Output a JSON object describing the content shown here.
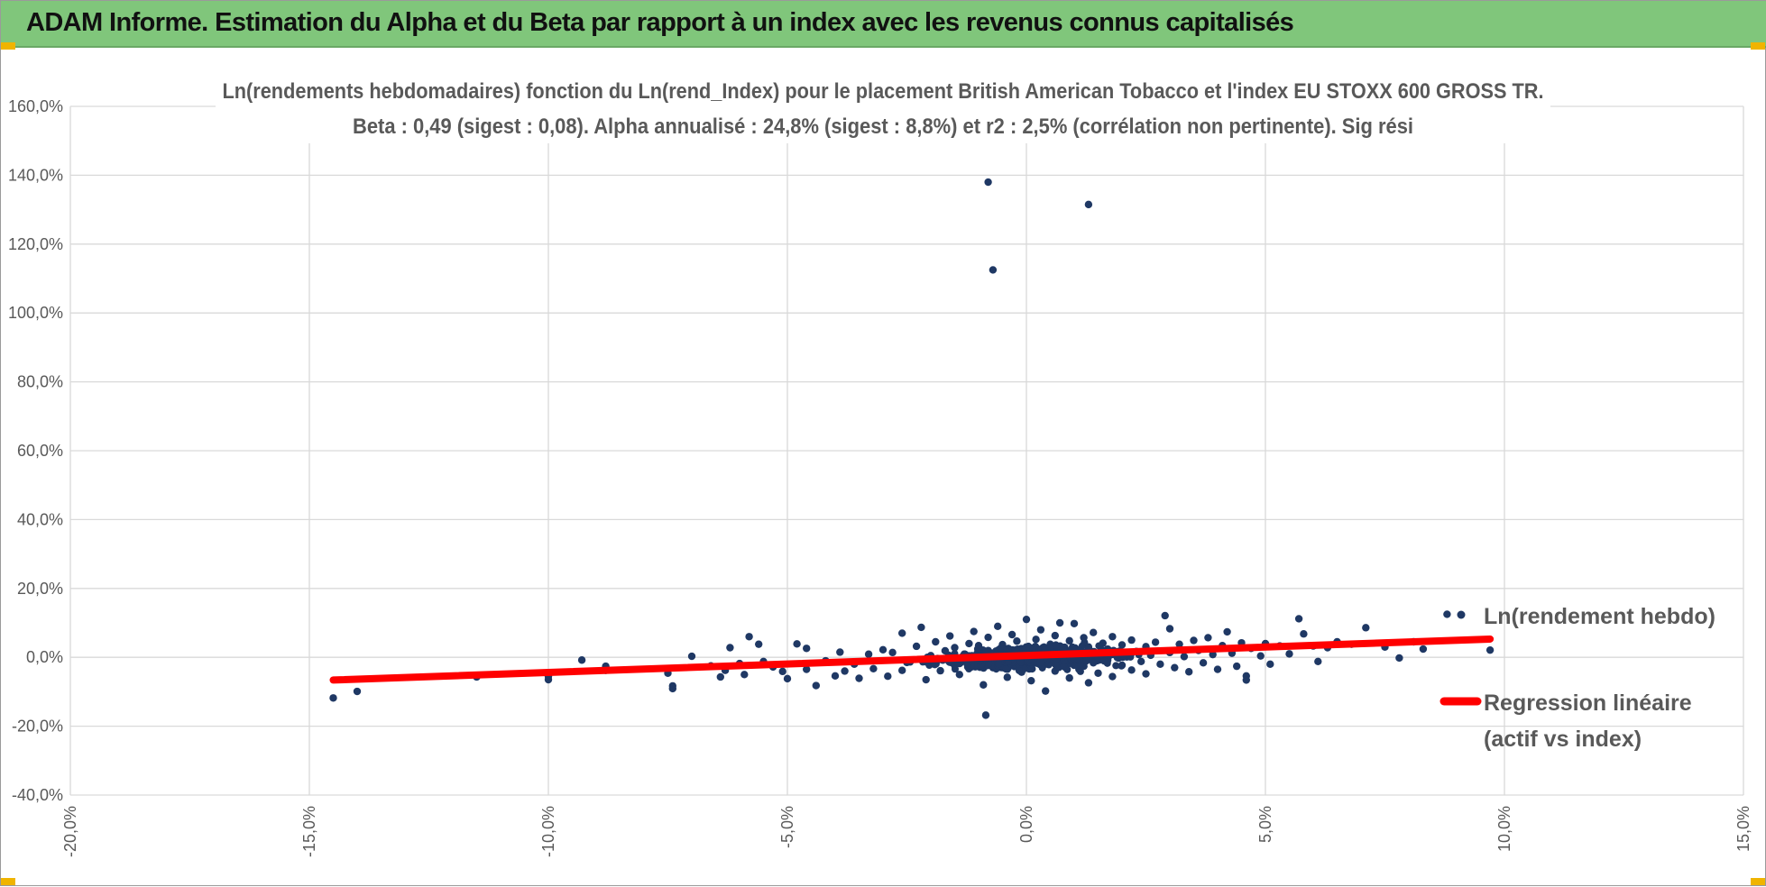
{
  "header": {
    "title": "ADAM Informe. Estimation du Alpha et du Beta par rapport à un index avec les revenus connus capitalisés"
  },
  "colors": {
    "header_bg": "#80c67b",
    "corner_accent": "#f0b400",
    "point": "#1f3864",
    "regression": "#ff0000",
    "grid": "#d9d9d9",
    "text": "#595959"
  },
  "chart_data": {
    "type": "scatter",
    "title_lines": [
      "Ln(rendements hebdomadaires) fonction du Ln(rend_Index) pour le placement British American Tobacco  et l'index EU STOXX 600 GROSS TR.",
      "Beta : 0,49 (sigest : 0,08).  Alpha annualisé : 24,8% (sigest : 8,8%) et r2 : 2,5% (corrélation non pertinente). Sig rési"
    ],
    "xlim": [
      -20,
      15
    ],
    "ylim": [
      -40,
      160
    ],
    "x_ticks": [
      -20,
      -15,
      -10,
      -5,
      0,
      5,
      10,
      15
    ],
    "y_ticks": [
      -40,
      -20,
      0,
      20,
      40,
      60,
      80,
      100,
      120,
      140,
      160
    ],
    "x_tick_labels": [
      "-20,0%",
      "-15,0%",
      "-10,0%",
      "-5,0%",
      "0,0%",
      "5,0%",
      "10,0%",
      "15,0%"
    ],
    "y_tick_labels": [
      "-40,0%",
      "-20,0%",
      "0,0%",
      "20,0%",
      "40,0%",
      "60,0%",
      "80,0%",
      "100,0%",
      "120,0%",
      "140,0%",
      "160,0%"
    ],
    "grid": true,
    "legend_position": "right",
    "series": [
      {
        "name": "Ln(rendement hebdo)",
        "kind": "points",
        "points": [
          [
            -14.5,
            -11.8
          ],
          [
            -14.0,
            -9.9
          ],
          [
            -11.5,
            -5.7
          ],
          [
            -10.0,
            -6.5
          ],
          [
            -10.0,
            -5.5
          ],
          [
            -9.3,
            -0.8
          ],
          [
            -8.8,
            -3.8
          ],
          [
            -8.8,
            -2.6
          ],
          [
            -7.5,
            -4.6
          ],
          [
            -7.4,
            -8.3
          ],
          [
            -7.4,
            -9.1
          ],
          [
            -7.0,
            0.3
          ],
          [
            -6.6,
            -2.5
          ],
          [
            -6.4,
            -5.7
          ],
          [
            -6.3,
            -3.8
          ],
          [
            -6.2,
            2.8
          ],
          [
            -6.0,
            -1.8
          ],
          [
            -5.9,
            -5.0
          ],
          [
            -5.8,
            6.0
          ],
          [
            -5.6,
            3.8
          ],
          [
            -5.5,
            -1.2
          ],
          [
            -5.3,
            -2.8
          ],
          [
            -5.1,
            -4.1
          ],
          [
            -5.0,
            -6.2
          ],
          [
            -4.8,
            3.9
          ],
          [
            -4.6,
            -3.5
          ],
          [
            -4.6,
            2.6
          ],
          [
            -4.4,
            -8.2
          ],
          [
            -4.2,
            -1.0
          ],
          [
            -4.0,
            -5.4
          ],
          [
            -3.9,
            1.5
          ],
          [
            -3.8,
            -4.0
          ],
          [
            -3.6,
            -2.0
          ],
          [
            -3.5,
            -6.1
          ],
          [
            -3.3,
            0.9
          ],
          [
            -3.2,
            -3.3
          ],
          [
            -3.0,
            2.2
          ],
          [
            -2.9,
            -5.5
          ],
          [
            -2.8,
            1.4
          ],
          [
            -2.6,
            -3.8
          ],
          [
            -2.6,
            7.0
          ],
          [
            -2.5,
            -1.5
          ],
          [
            -2.3,
            3.2
          ],
          [
            -2.2,
            8.7
          ],
          [
            -2.1,
            -6.5
          ],
          [
            -2.0,
            0.5
          ],
          [
            -1.9,
            4.5
          ],
          [
            -1.8,
            -3.9
          ],
          [
            -1.7,
            1.9
          ],
          [
            -1.6,
            -1.4
          ],
          [
            -1.6,
            6.2
          ],
          [
            -1.5,
            2.8
          ],
          [
            -1.4,
            -5.0
          ],
          [
            -1.3,
            0.9
          ],
          [
            -1.2,
            4.0
          ],
          [
            -1.2,
            -2.3
          ],
          [
            -1.1,
            7.5
          ],
          [
            -1.0,
            -0.7
          ],
          [
            -1.0,
            3.4
          ],
          [
            -0.9,
            -8.0
          ],
          [
            -0.9,
            1.7
          ],
          [
            -0.8,
            5.8
          ],
          [
            -0.8,
            138.0
          ],
          [
            -0.7,
            112.5
          ],
          [
            -0.7,
            -3.0
          ],
          [
            -0.85,
            -16.8
          ],
          [
            -0.6,
            0.4
          ],
          [
            -0.6,
            9.0
          ],
          [
            -0.5,
            -1.6
          ],
          [
            -0.5,
            3.7
          ],
          [
            -0.4,
            -5.8
          ],
          [
            -0.4,
            2.1
          ],
          [
            -0.3,
            6.6
          ],
          [
            -0.3,
            -0.4
          ],
          [
            -0.2,
            -2.6
          ],
          [
            -0.2,
            4.7
          ],
          [
            -0.1,
            1.2
          ],
          [
            -0.1,
            -4.3
          ],
          [
            0.0,
            11.0
          ],
          [
            0.0,
            -1.0
          ],
          [
            0.1,
            2.6
          ],
          [
            0.1,
            -6.8
          ],
          [
            0.2,
            5.2
          ],
          [
            0.2,
            0.2
          ],
          [
            0.3,
            -2.2
          ],
          [
            0.3,
            8.0
          ],
          [
            0.4,
            1.6
          ],
          [
            0.4,
            -9.8
          ],
          [
            0.5,
            3.8
          ],
          [
            0.5,
            -0.8
          ],
          [
            0.6,
            -4.0
          ],
          [
            0.6,
            6.3
          ],
          [
            0.7,
            0.7
          ],
          [
            0.7,
            10.0
          ],
          [
            0.8,
            -2.8
          ],
          [
            0.8,
            2.9
          ],
          [
            0.9,
            -6.0
          ],
          [
            0.9,
            4.8
          ],
          [
            1.0,
            -0.3
          ],
          [
            1.0,
            9.8
          ],
          [
            1.1,
            1.9
          ],
          [
            1.1,
            -3.5
          ],
          [
            1.2,
            5.7
          ],
          [
            1.2,
            0.4
          ],
          [
            1.3,
            -7.4
          ],
          [
            1.3,
            131.5
          ],
          [
            1.3,
            3.0
          ],
          [
            1.4,
            -1.6
          ],
          [
            1.4,
            7.2
          ],
          [
            1.5,
            0.9
          ],
          [
            1.5,
            -4.6
          ],
          [
            1.6,
            4.1
          ],
          [
            1.7,
            -0.9
          ],
          [
            1.7,
            2.4
          ],
          [
            1.8,
            -5.6
          ],
          [
            1.8,
            6.0
          ],
          [
            1.9,
            1.1
          ],
          [
            2.0,
            -2.3
          ],
          [
            2.0,
            3.6
          ],
          [
            2.1,
            0.1
          ],
          [
            2.2,
            -3.7
          ],
          [
            2.2,
            5.0
          ],
          [
            2.3,
            1.7
          ],
          [
            2.4,
            -1.2
          ],
          [
            2.5,
            3.1
          ],
          [
            2.5,
            -4.8
          ],
          [
            2.6,
            0.6
          ],
          [
            2.7,
            4.4
          ],
          [
            2.8,
            -2.0
          ],
          [
            2.9,
            12.1
          ],
          [
            3.0,
            1.4
          ],
          [
            3.0,
            8.3
          ],
          [
            3.1,
            -3.0
          ],
          [
            3.2,
            3.8
          ],
          [
            3.3,
            0.2
          ],
          [
            3.4,
            -4.2
          ],
          [
            3.5,
            4.9
          ],
          [
            3.6,
            2.0
          ],
          [
            3.7,
            -1.6
          ],
          [
            3.8,
            5.7
          ],
          [
            3.9,
            0.8
          ],
          [
            4.0,
            -3.5
          ],
          [
            4.1,
            3.4
          ],
          [
            4.2,
            7.4
          ],
          [
            4.3,
            1.2
          ],
          [
            4.4,
            -2.6
          ],
          [
            4.5,
            4.2
          ],
          [
            4.6,
            -5.4
          ],
          [
            4.6,
            -6.6
          ],
          [
            4.7,
            2.6
          ],
          [
            4.9,
            0.4
          ],
          [
            5.0,
            4.0
          ],
          [
            5.1,
            -2.0
          ],
          [
            5.3,
            3.3
          ],
          [
            5.5,
            1.0
          ],
          [
            5.7,
            11.2
          ],
          [
            5.8,
            6.8
          ],
          [
            6.0,
            3.3
          ],
          [
            6.1,
            -1.2
          ],
          [
            6.3,
            2.8
          ],
          [
            6.5,
            4.5
          ],
          [
            6.8,
            3.8
          ],
          [
            7.1,
            8.6
          ],
          [
            7.5,
            3.0
          ],
          [
            7.8,
            -0.2
          ],
          [
            8.1,
            4.5
          ],
          [
            8.3,
            2.4
          ],
          [
            8.8,
            12.5
          ],
          [
            9.7,
            2.1
          ]
        ]
      },
      {
        "name": "Regression linéaire (actif vs index)",
        "kind": "line",
        "points": [
          [
            -14.5,
            -6.6
          ],
          [
            9.7,
            5.3
          ]
        ]
      }
    ],
    "legend": [
      {
        "label": "Ln(rendement hebdo)"
      },
      {
        "label_lines": [
          "Regression linéaire",
          "(actif vs index)"
        ]
      }
    ]
  }
}
